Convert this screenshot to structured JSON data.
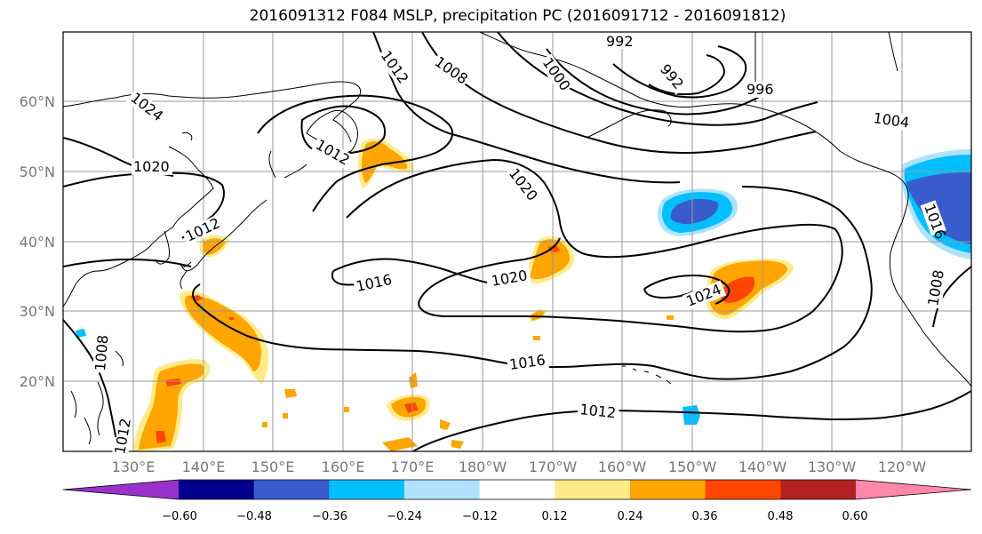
{
  "title": "2016091312 F084 MSLP, precipitation PC (2016091712 - 2016091812)",
  "lat_labels": [
    "60°N",
    "50°N",
    "40°N",
    "30°N",
    "20°N"
  ],
  "lon_labels": [
    "130°E",
    "140°E",
    "150°E",
    "160°E",
    "170°E",
    "180°W",
    "170°W",
    "160°W",
    "150°W",
    "140°W",
    "130°W",
    "120°W"
  ],
  "isobar_labels": [
    "992",
    "992",
    "996",
    "1000",
    "1004",
    "1008",
    "1012",
    "1012",
    "1012",
    "1012",
    "1016",
    "1016",
    "1020",
    "1020",
    "1020",
    "1024",
    "1024",
    "1008",
    "1012",
    "1008",
    "1016"
  ],
  "colorbar": {
    "ticks": [
      "−0.60",
      "−0.48",
      "−0.36",
      "−0.24",
      "−0.12",
      "0.12",
      "0.24",
      "0.36",
      "0.48",
      "0.60"
    ],
    "colors": [
      "#9932CC",
      "#00008B",
      "#3A5BCC",
      "#00BFFF",
      "#B0E2FF",
      "#FFFFFF",
      "#FFEB8A",
      "#FFA500",
      "#FF4500",
      "#B22222",
      "#FF88AA"
    ]
  },
  "colors": {
    "land_line": "#000000",
    "grid": "#999999"
  }
}
